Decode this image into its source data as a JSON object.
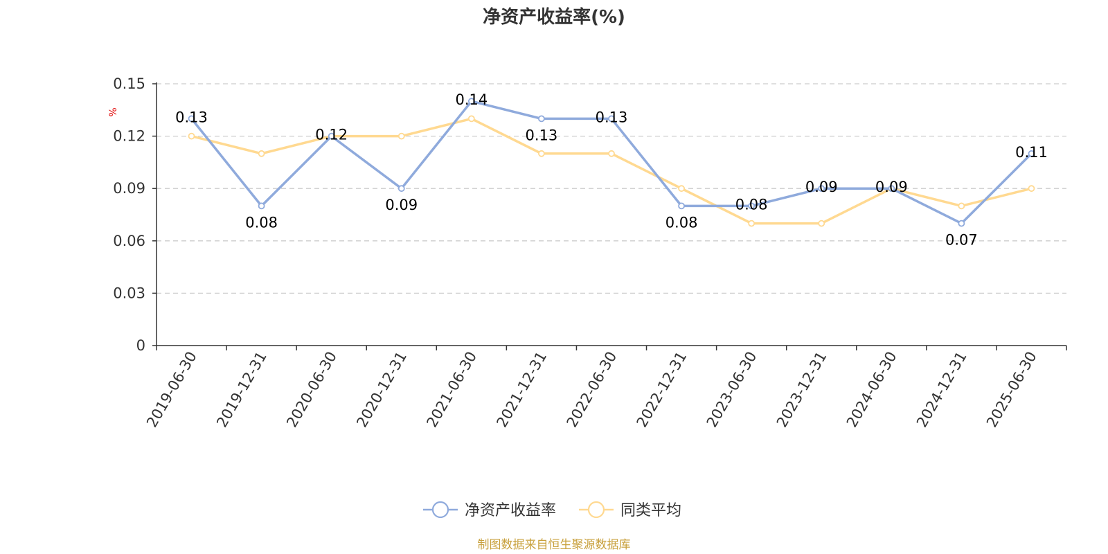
{
  "chart_data": {
    "type": "line",
    "title": "净资产收益率(%)",
    "ylabel": "%",
    "xlabel": "",
    "categories": [
      "2019-06-30",
      "2019-12-31",
      "2020-06-30",
      "2020-12-31",
      "2021-06-30",
      "2021-12-31",
      "2022-06-30",
      "2022-12-31",
      "2023-06-30",
      "2023-12-31",
      "2024-06-30",
      "2024-12-31",
      "2025-06-30"
    ],
    "ylim": [
      0,
      0.15
    ],
    "yticks": [
      "0",
      "0.03",
      "0.06",
      "0.09",
      "0.12",
      "0.15"
    ],
    "ytick_values": [
      0,
      0.03,
      0.06,
      0.09,
      0.12,
      0.15
    ],
    "grid": true,
    "legend_position": "bottom-center",
    "series": [
      {
        "name": "净资产收益率",
        "color": "#8FAADC",
        "values": [
          0.13,
          0.08,
          0.12,
          0.09,
          0.14,
          0.13,
          0.13,
          0.08,
          0.08,
          0.09,
          0.09,
          0.07,
          0.11
        ],
        "labels": [
          "0.13",
          "0.08",
          "0.12",
          "0.09",
          "0.14",
          "0.13",
          "0.13",
          "0.08",
          "0.08",
          "0.09",
          "0.09",
          "0.07",
          "0.11"
        ]
      },
      {
        "name": "同类平均",
        "color": "#FFD991",
        "values": [
          0.12,
          0.11,
          0.12,
          0.12,
          0.13,
          0.11,
          0.11,
          0.09,
          0.07,
          0.07,
          0.09,
          0.08,
          0.09
        ]
      }
    ],
    "source": "制图数据来自恒生聚源数据库",
    "colors": {
      "unit": "#E00000",
      "source": "#C8A03C",
      "axis": "#333333",
      "grid": "#CCCCCC"
    }
  }
}
